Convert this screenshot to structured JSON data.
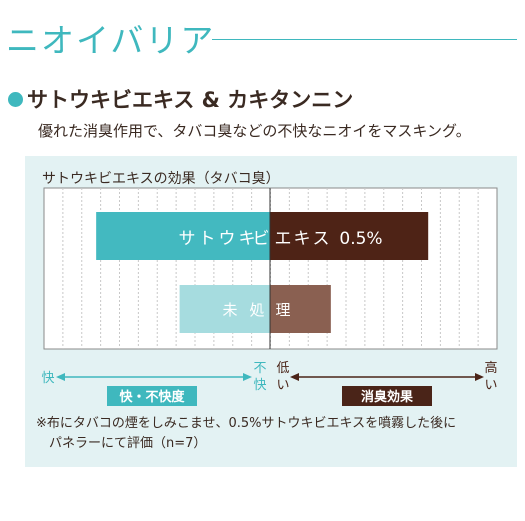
{
  "header": {
    "title": "ニオイバリア",
    "subtitle": "サトウキビエキス & カキタンニン",
    "description": "優れた消臭作用で、タバコ臭などの不快なニオイをマスキング。"
  },
  "chart_data": {
    "type": "bar",
    "title": "サトウキビエキスの効果（タバコ臭）",
    "categories": [
      "サトウキビエキス 0.5%",
      "未処理"
    ],
    "left_label_chars": [
      [
        "サ",
        "ト",
        "ウ",
        "キ",
        "ビ"
      ],
      [
        "未",
        "処"
      ]
    ],
    "right_label_chars": [
      [
        "エ",
        "キ",
        "ス",
        "0.5%"
      ],
      [
        "理"
      ]
    ],
    "series": [
      {
        "values": [
          -1.0,
          -0.52
        ]
      },
      {
        "values": [
          0.91,
          0.35
        ]
      }
    ],
    "xlim": [
      -1.3,
      1.3
    ],
    "grid": true,
    "colors": {
      "left": [
        "#43b9c0",
        "#a6dcdf"
      ],
      "right": [
        "#4e2316",
        "#8a6051"
      ]
    },
    "left_scale": {
      "end_label": "快",
      "center_label_top": "不",
      "center_label_bottom": "快",
      "badge": "快・不快度",
      "color": "#3fb8be"
    },
    "right_scale": {
      "start_label_top": "低",
      "start_label_bottom": "い",
      "end_label_top": "高",
      "end_label_bottom": "い",
      "badge": "消臭効果",
      "color": "#4a2418"
    }
  },
  "footnote": {
    "line1": "※布にタバコの煙をしみこませ、0.5%サトウキビエキスを噴霧した後に",
    "line2": "　パネラーにて評価（n=7）"
  }
}
